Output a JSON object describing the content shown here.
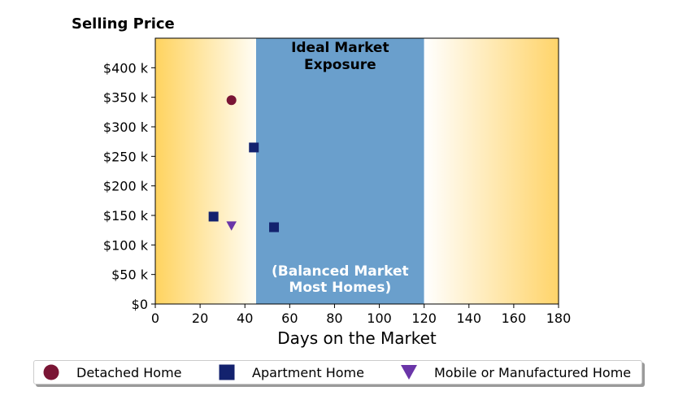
{
  "chart_data": {
    "type": "scatter",
    "title": "",
    "ylabel": "Selling Price",
    "xlabel": "Days on the Market",
    "xlim": [
      0,
      180
    ],
    "ylim": [
      0,
      450000
    ],
    "x_ticks": [
      0,
      20,
      40,
      60,
      80,
      100,
      120,
      140,
      160,
      180
    ],
    "x_tick_labels": [
      "0",
      "20",
      "40",
      "60",
      "80",
      "100",
      "120",
      "140",
      "160",
      "180"
    ],
    "y_ticks": [
      0,
      50000,
      100000,
      150000,
      200000,
      250000,
      300000,
      350000,
      400000
    ],
    "y_tick_labels": [
      "$0",
      "$50 k",
      "$100 k",
      "$150 k",
      "$200 k",
      "$250 k",
      "$300 k",
      "$350 k",
      "$400 k"
    ],
    "grid": false,
    "legend_position": "bottom",
    "background": {
      "gradient_left": {
        "from": 0,
        "to": 45,
        "color_edge": "#ffd35f",
        "color_inner": "#fffdf5"
      },
      "band": {
        "from": 45,
        "to": 120,
        "color": "#6a9fcc"
      },
      "gradient_right": {
        "from": 120,
        "to": 180,
        "color_edge": "#ffd46a",
        "color_inner": "#ffffff"
      }
    },
    "annotations": [
      {
        "lines": [
          "Ideal Market",
          "Exposure"
        ],
        "color": "#000000"
      },
      {
        "lines": [
          "(Balanced Market",
          "Most Homes)"
        ],
        "color": "#ffffff"
      }
    ],
    "series": [
      {
        "name": "Detached Home",
        "marker": "circle",
        "color": "#7a1535",
        "points": [
          {
            "x": 34,
            "y": 345000
          }
        ]
      },
      {
        "name": "Apartment Home",
        "marker": "square",
        "color": "#13226e",
        "points": [
          {
            "x": 44,
            "y": 265000
          },
          {
            "x": 26,
            "y": 148000
          },
          {
            "x": 53,
            "y": 130000
          }
        ]
      },
      {
        "name": "Mobile or Manufactured Home",
        "marker": "triangle-down",
        "color": "#6a35a8",
        "points": [
          {
            "x": 34,
            "y": 132000
          }
        ]
      }
    ]
  }
}
